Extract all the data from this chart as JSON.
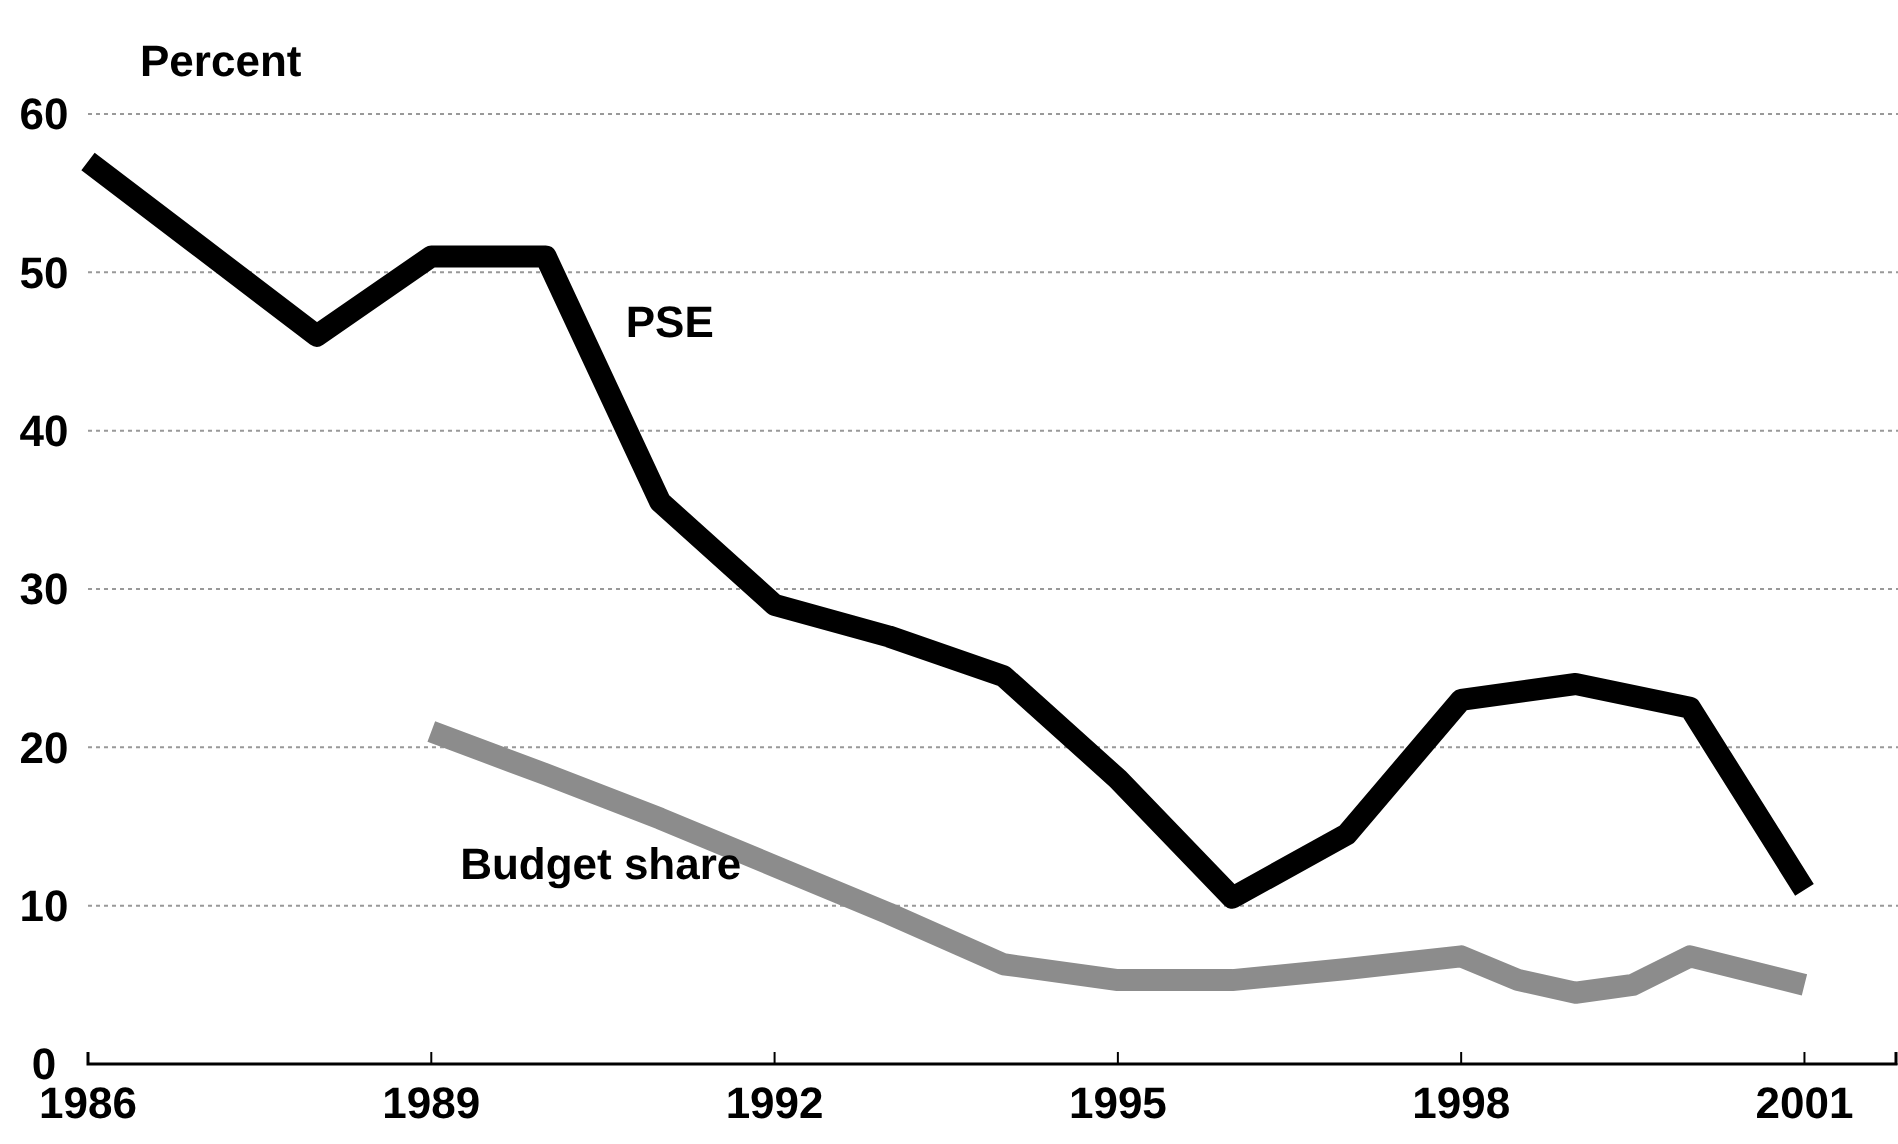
{
  "chart_data": {
    "type": "line",
    "ylabel": "Percent",
    "xlim": [
      1986,
      2001.8
    ],
    "xticks": [
      1986,
      1989,
      1992,
      1995,
      1998,
      2001
    ],
    "ylim": [
      0,
      60
    ],
    "yticks": [
      0,
      10,
      20,
      30,
      40,
      50,
      60
    ],
    "grid": "y",
    "legend": false,
    "marker": "none",
    "line_style": "solid",
    "series": [
      {
        "name": "PSE",
        "color": "#000000",
        "x": [
          1986,
          1987,
          1988,
          1989,
          1990,
          1991,
          1992,
          1993,
          1994,
          1995,
          1996,
          1997,
          1998,
          1999,
          2000,
          2001
        ],
        "values": [
          57,
          51.5,
          46,
          51,
          51,
          35.5,
          29,
          27,
          24.5,
          18,
          10.5,
          14.5,
          23,
          24,
          22.5,
          11
        ]
      },
      {
        "name": "Budget share",
        "color": "#8c8c8c",
        "x": [
          1989,
          1990,
          1991,
          1992,
          1993,
          1994,
          1995,
          1996,
          1997,
          1998,
          1998.5,
          1999,
          1999.5,
          2000,
          2001
        ],
        "values": [
          21,
          18.3,
          15.5,
          12.5,
          9.5,
          6.3,
          5.3,
          5.3,
          6,
          6.8,
          5.3,
          4.5,
          5,
          6.8,
          5
        ]
      }
    ]
  }
}
